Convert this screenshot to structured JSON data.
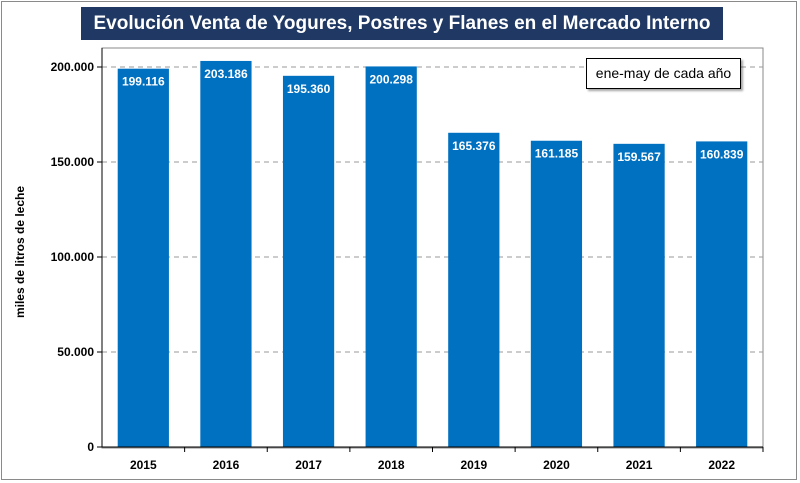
{
  "chart_data": {
    "type": "bar",
    "title": "Evolución Venta de Yogures, Postres y Flanes en el Mercado Interno",
    "annotation": "ene-may de cada año",
    "ylabel": "miles de litros de leche",
    "xlabel": "",
    "categories": [
      "2015",
      "2016",
      "2017",
      "2018",
      "2019",
      "2020",
      "2021",
      "2022"
    ],
    "values": [
      199116,
      203186,
      195360,
      200298,
      165376,
      161185,
      159567,
      160839
    ],
    "value_labels": [
      "199.116",
      "203.186",
      "195.360",
      "200.298",
      "165.376",
      "161.185",
      "159.567",
      "160.839"
    ],
    "ylim": [
      0,
      200000
    ],
    "yticks": [
      0,
      50000,
      100000,
      150000,
      200000
    ],
    "ytick_labels": [
      "0",
      "50.000",
      "100.000",
      "150.000",
      "200.000"
    ],
    "grid": true,
    "bar_color": "#0070c0"
  }
}
